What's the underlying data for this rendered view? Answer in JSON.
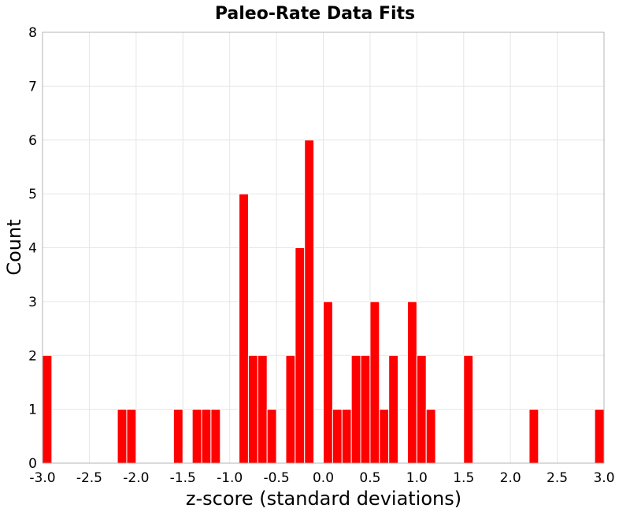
{
  "chart_data": {
    "type": "bar",
    "title": "Paleo-Rate Data Fits",
    "xlabel": "z-score (standard deviations)",
    "ylabel": "Count",
    "xlim": [
      -3.0,
      3.0
    ],
    "ylim": [
      0,
      8
    ],
    "bin_width": 0.1,
    "grid": true,
    "legend": "none",
    "x_ticks": [
      "-3.0",
      "-2.5",
      "-2.0",
      "-1.5",
      "-1.0",
      "-0.5",
      "0.0",
      "0.5",
      "1.0",
      "1.5",
      "2.0",
      "2.5",
      "3.0"
    ],
    "x_tick_values": [
      -3.0,
      -2.5,
      -2.0,
      -1.5,
      -1.0,
      -0.5,
      0.0,
      0.5,
      1.0,
      1.5,
      2.0,
      2.5,
      3.0
    ],
    "y_ticks": [
      "0",
      "1",
      "2",
      "3",
      "4",
      "5",
      "6",
      "7",
      "8"
    ],
    "y_tick_values": [
      0,
      1,
      2,
      3,
      4,
      5,
      6,
      7,
      8
    ],
    "bar_color": "#ff0000",
    "bins": [
      {
        "x": -3.0,
        "count": 2
      },
      {
        "x": -2.2,
        "count": 1
      },
      {
        "x": -2.1,
        "count": 1
      },
      {
        "x": -1.6,
        "count": 1
      },
      {
        "x": -1.4,
        "count": 1
      },
      {
        "x": -1.3,
        "count": 1
      },
      {
        "x": -1.2,
        "count": 1
      },
      {
        "x": -0.9,
        "count": 5
      },
      {
        "x": -0.8,
        "count": 2
      },
      {
        "x": -0.7,
        "count": 2
      },
      {
        "x": -0.6,
        "count": 1
      },
      {
        "x": -0.4,
        "count": 2
      },
      {
        "x": -0.3,
        "count": 4
      },
      {
        "x": -0.2,
        "count": 6
      },
      {
        "x": 0.0,
        "count": 3
      },
      {
        "x": 0.1,
        "count": 1
      },
      {
        "x": 0.2,
        "count": 1
      },
      {
        "x": 0.3,
        "count": 2
      },
      {
        "x": 0.4,
        "count": 2
      },
      {
        "x": 0.5,
        "count": 3
      },
      {
        "x": 0.6,
        "count": 1
      },
      {
        "x": 0.7,
        "count": 2
      },
      {
        "x": 0.9,
        "count": 3
      },
      {
        "x": 1.0,
        "count": 2
      },
      {
        "x": 1.1,
        "count": 1
      },
      {
        "x": 1.5,
        "count": 2
      },
      {
        "x": 2.2,
        "count": 1
      },
      {
        "x": 2.9,
        "count": 1
      }
    ]
  }
}
